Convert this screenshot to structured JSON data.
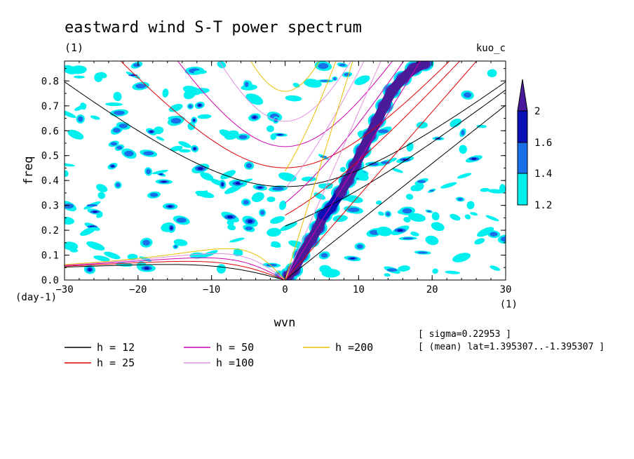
{
  "chart_data": {
    "type": "heatmap",
    "title": "eastward wind S-T power spectrum",
    "subtitle": "(1)",
    "dataset_label": "kuo_c",
    "xlabel": "wvn",
    "ylabel": "freq",
    "x_unit": "(1)",
    "y_unit": "(day-1)",
    "xlim": [
      -30,
      30
    ],
    "ylim": [
      0,
      0.88
    ],
    "xticks": [
      -30,
      -20,
      -10,
      0,
      10,
      20,
      30
    ],
    "yticks": [
      0.0,
      0.1,
      0.2,
      0.3,
      0.4,
      0.5,
      0.6,
      0.7,
      0.8
    ],
    "colorbar": {
      "levels": [
        1.2,
        1.4,
        1.6,
        2
      ],
      "tick_labels": [
        "1.2",
        "1.4",
        "1.6",
        "2"
      ],
      "colors": [
        "#00f0f0",
        "#1a6fe8",
        "#0a10b8",
        "#4a1a9a"
      ]
    },
    "dispersion_curves": [
      {
        "label": "h = 12",
        "h": 12,
        "color": "#000000"
      },
      {
        "label": "h = 25",
        "h": 25,
        "color": "#e00000"
      },
      {
        "label": "h = 50",
        "h": 50,
        "color": "#d000b0"
      },
      {
        "label": "h =100",
        "h": 100,
        "color": "#e090e0"
      },
      {
        "label": "h =200",
        "h": 200,
        "color": "#e8c000"
      }
    ],
    "kelvin_ridge": [
      {
        "x": 0.5,
        "y": 0.02,
        "level": 2
      },
      {
        "x": 1.2,
        "y": 0.04,
        "level": 2
      },
      {
        "x": 2.2,
        "y": 0.1,
        "level": 2
      },
      {
        "x": 3.5,
        "y": 0.16,
        "level": 2
      },
      {
        "x": 4.5,
        "y": 0.21,
        "level": 2
      },
      {
        "x": 5.2,
        "y": 0.26,
        "level": 2
      },
      {
        "x": 6.2,
        "y": 0.29,
        "level": 1.6
      },
      {
        "x": 7.5,
        "y": 0.35,
        "level": 2
      },
      {
        "x": 8.5,
        "y": 0.4,
        "level": 2
      },
      {
        "x": 9.5,
        "y": 0.46,
        "level": 2
      },
      {
        "x": 10.5,
        "y": 0.52,
        "level": 2
      },
      {
        "x": 11.5,
        "y": 0.58,
        "level": 2
      },
      {
        "x": 12.5,
        "y": 0.64,
        "level": 2
      },
      {
        "x": 13.5,
        "y": 0.7,
        "level": 2
      },
      {
        "x": 14.5,
        "y": 0.76,
        "level": 2
      },
      {
        "x": 16,
        "y": 0.81,
        "level": 2
      },
      {
        "x": 17.5,
        "y": 0.85,
        "level": 2
      },
      {
        "x": 19,
        "y": 0.87,
        "level": 2
      }
    ],
    "notes": {
      "sigma": "[ sigma=0.22953 ]",
      "mean_lat": "[ (mean) lat=1.395307..-1.395307 ]"
    }
  }
}
